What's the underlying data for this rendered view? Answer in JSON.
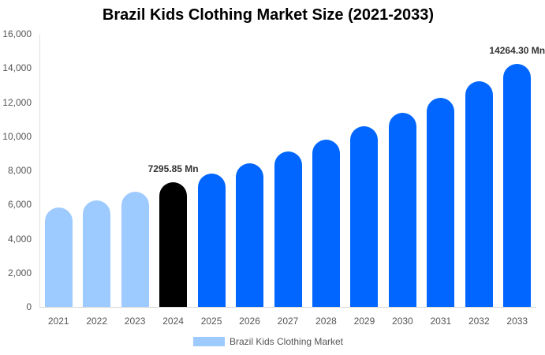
{
  "chart_data": {
    "type": "bar",
    "title": "Brazil Kids Clothing Market Size (2021-2033)",
    "xlabel": "",
    "ylabel": "",
    "ylim": [
      0,
      16000
    ],
    "yticks": [
      "0",
      "2,000",
      "4,000",
      "6,000",
      "8,000",
      "10,000",
      "12,000",
      "14,000",
      "16,000"
    ],
    "ytick_values": [
      0,
      2000,
      4000,
      6000,
      8000,
      10000,
      12000,
      14000,
      16000
    ],
    "grid": false,
    "legend_position": "bottom",
    "categories": [
      "2021",
      "2022",
      "2023",
      "2024",
      "2025",
      "2026",
      "2027",
      "2028",
      "2029",
      "2030",
      "2031",
      "2032",
      "2033"
    ],
    "series": [
      {
        "name": "Brazil Kids Clothing Market",
        "values": [
          5830,
          6255,
          6750,
          7295.85,
          7830,
          8430,
          9095,
          9805,
          10575,
          11375,
          12255,
          13210,
          14264.3
        ]
      }
    ],
    "bar_colors": [
      "#9ecbff",
      "#9ecbff",
      "#9ecbff",
      "#000000",
      "#0066ff",
      "#0066ff",
      "#0066ff",
      "#0066ff",
      "#0066ff",
      "#0066ff",
      "#0066ff",
      "#0066ff",
      "#0066ff"
    ],
    "annotations": [
      {
        "category": "2024",
        "text": "7295.85 Mn"
      },
      {
        "category": "2033",
        "text": "14264.30 Mn"
      }
    ],
    "legend": [
      {
        "label": "Brazil Kids Clothing Market",
        "color": "#9ecbff"
      }
    ]
  }
}
